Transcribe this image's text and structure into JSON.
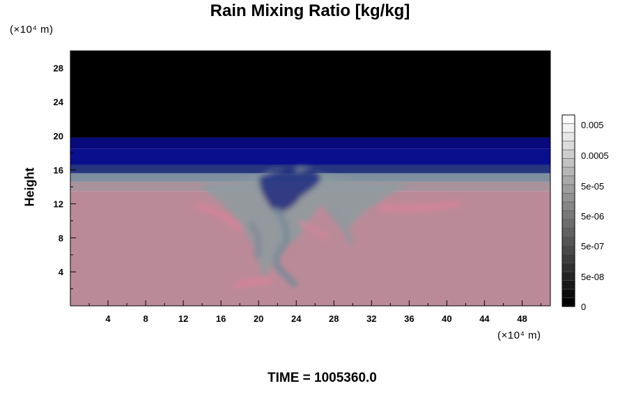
{
  "chart_data": {
    "type": "heatmap",
    "title": "Rain Mixing Ratio [kg/kg]",
    "ylabel": "Height",
    "xlabel": "",
    "x_unit_label": "(×10⁴ m)",
    "y_unit_label": "(×10⁴ m)",
    "xlim": [
      0,
      51
    ],
    "ylim": [
      0,
      30
    ],
    "x_ticks": [
      4,
      8,
      12,
      16,
      20,
      24,
      28,
      32,
      36,
      40,
      44,
      48
    ],
    "y_ticks": [
      4,
      8,
      12,
      16,
      20,
      24,
      28
    ],
    "field_bands": [
      {
        "from": 0,
        "to": 13.5,
        "color": "#bb8a98"
      },
      {
        "from": 13.5,
        "to": 14.6,
        "color": "#a8929c"
      },
      {
        "from": 14.6,
        "to": 15.6,
        "color": "#7f8fa0"
      },
      {
        "from": 15.6,
        "to": 16.6,
        "color": "#26357f"
      },
      {
        "from": 16.6,
        "to": 18.5,
        "color": "#0a0f8e"
      },
      {
        "from": 18.5,
        "to": 19.8,
        "color": "#08097a"
      },
      {
        "from": 19.8,
        "to": 30,
        "color": "#000000"
      }
    ],
    "colorbar": {
      "labels": [
        "0.005",
        "0.0005",
        "5e-05",
        "5e-06",
        "5e-07",
        "5e-08",
        "0"
      ],
      "levels": 22,
      "colors": [
        "#000000",
        "#ffffff"
      ]
    },
    "footer": "TIME = 1005360.0"
  }
}
